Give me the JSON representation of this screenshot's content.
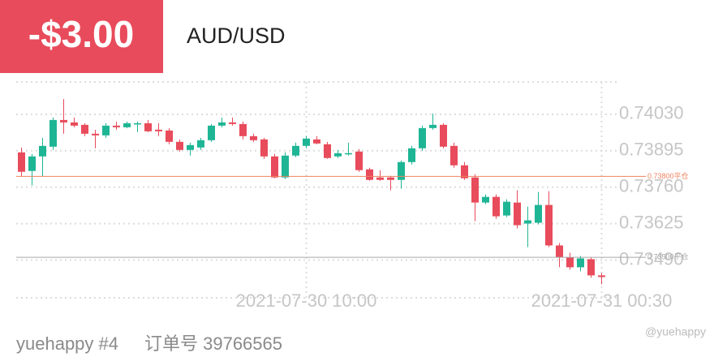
{
  "header": {
    "pnl": "-$3.00",
    "symbol": "AUD/USD"
  },
  "footer": {
    "user": "yuehappy #4",
    "order": "订单号 39766565",
    "watermark": "@yuehappy"
  },
  "chart_data": {
    "type": "candlestick",
    "up_color": "#1eb595",
    "down_color": "#e84b5b",
    "categories": [
      null,
      null,
      null,
      null,
      null,
      null,
      null,
      null,
      null,
      null,
      null,
      null,
      null,
      null,
      null,
      null,
      null,
      null,
      null,
      null,
      null,
      null,
      null,
      null,
      null,
      null,
      null,
      "2021-07-30 10:00",
      null,
      null,
      null,
      null,
      null,
      null,
      null,
      null,
      null,
      null,
      null,
      null,
      null,
      null,
      null,
      null,
      null,
      null,
      null,
      null,
      null,
      null,
      null,
      null,
      null,
      null,
      null,
      "2021-07-31 00:30"
    ],
    "open": [
      0.73889,
      0.7382,
      0.73874,
      0.7391,
      0.74009,
      0.74,
      0.73991,
      0.73958,
      0.73952,
      0.73988,
      0.73982,
      0.73994,
      0.73997,
      0.73973,
      0.7397,
      0.73928,
      0.73898,
      0.73907,
      0.73934,
      0.73988,
      0.74,
      0.73994,
      0.73949,
      0.73937,
      0.73874,
      0.73796,
      0.73877,
      0.73913,
      0.73937,
      0.73919,
      0.73874,
      0.73883,
      0.73892,
      0.73826,
      0.73796,
      0.73796,
      0.73787,
      0.73853,
      0.73904,
      0.73979,
      0.73991,
      0.73913,
      0.73841,
      0.73796,
      0.73703,
      0.73724,
      0.73655,
      0.73703,
      0.73625,
      0.73628,
      0.73694,
      0.73544,
      0.73499,
      0.73463,
      0.73493,
      0.73433
    ],
    "high": [
      0.73907,
      0.73883,
      0.73943,
      0.74018,
      0.74087,
      0.74018,
      0.73997,
      0.73973,
      0.73997,
      0.74003,
      0.74003,
      0.74003,
      0.74009,
      0.73997,
      0.73979,
      0.73937,
      0.73925,
      0.73943,
      0.73994,
      0.74018,
      0.74018,
      0.74003,
      0.73958,
      0.73943,
      0.73883,
      0.73889,
      0.73925,
      0.73949,
      0.73949,
      0.73928,
      0.73898,
      0.73925,
      0.73901,
      0.73832,
      0.73823,
      0.73802,
      0.73859,
      0.73913,
      0.73988,
      0.74033,
      0.73997,
      0.73925,
      0.73853,
      0.73808,
      0.73733,
      0.73733,
      0.73715,
      0.73748,
      0.73688,
      0.73742,
      0.73745,
      0.73553,
      0.73517,
      0.73505,
      0.73499,
      0.73442
    ],
    "low": [
      0.73799,
      0.73766,
      0.73799,
      0.73898,
      0.73958,
      0.73982,
      0.73949,
      0.73904,
      0.73943,
      0.73973,
      0.73979,
      0.73964,
      0.73964,
      0.73949,
      0.73919,
      0.73892,
      0.73877,
      0.73898,
      0.73928,
      0.73982,
      0.73988,
      0.73937,
      0.73928,
      0.73865,
      0.73793,
      0.7379,
      0.73871,
      0.73904,
      0.73919,
      0.73865,
      0.73868,
      0.73877,
      0.73817,
      0.73784,
      0.73784,
      0.73748,
      0.73754,
      0.73844,
      0.73895,
      0.73973,
      0.73904,
      0.73832,
      0.73787,
      0.73634,
      0.73697,
      0.73643,
      0.73649,
      0.73607,
      0.73538,
      0.73622,
      0.73538,
      0.73463,
      0.73454,
      0.73448,
      0.73424,
      0.734
    ],
    "close": [
      0.73817,
      0.73874,
      0.73913,
      0.74009,
      0.74,
      0.73988,
      0.73958,
      0.73952,
      0.73988,
      0.73982,
      0.73997,
      0.73997,
      0.73967,
      0.73967,
      0.73928,
      0.73898,
      0.73916,
      0.73934,
      0.73988,
      0.74,
      0.73994,
      0.73949,
      0.73934,
      0.73874,
      0.73796,
      0.73877,
      0.73913,
      0.7394,
      0.73922,
      0.73868,
      0.73886,
      0.73886,
      0.73823,
      0.73787,
      0.73787,
      0.73787,
      0.73853,
      0.73904,
      0.73979,
      0.73991,
      0.7391,
      0.73841,
      0.73793,
      0.73703,
      0.73724,
      0.73652,
      0.73706,
      0.73619,
      0.73637,
      0.73694,
      0.73544,
      0.73499,
      0.73463,
      0.73496,
      0.73433,
      0.73427
    ],
    "ylim": [
      0.7335,
      0.7415
    ],
    "yticks": [
      {
        "value": 0.7403,
        "label": "0.74030"
      },
      0.73895,
      {
        "value": 0.7376,
        "label": "0.73760"
      },
      0.73625,
      {
        "value": 0.7349,
        "label": "0.73490"
      }
    ],
    "grid": true,
    "ref_lines": [
      {
        "value": 0.738,
        "label": "0.73800平仓",
        "color": "#f0825f"
      },
      {
        "value": 0.735,
        "label": "0.73500平仓",
        "color": "#a8a8a8"
      }
    ]
  }
}
